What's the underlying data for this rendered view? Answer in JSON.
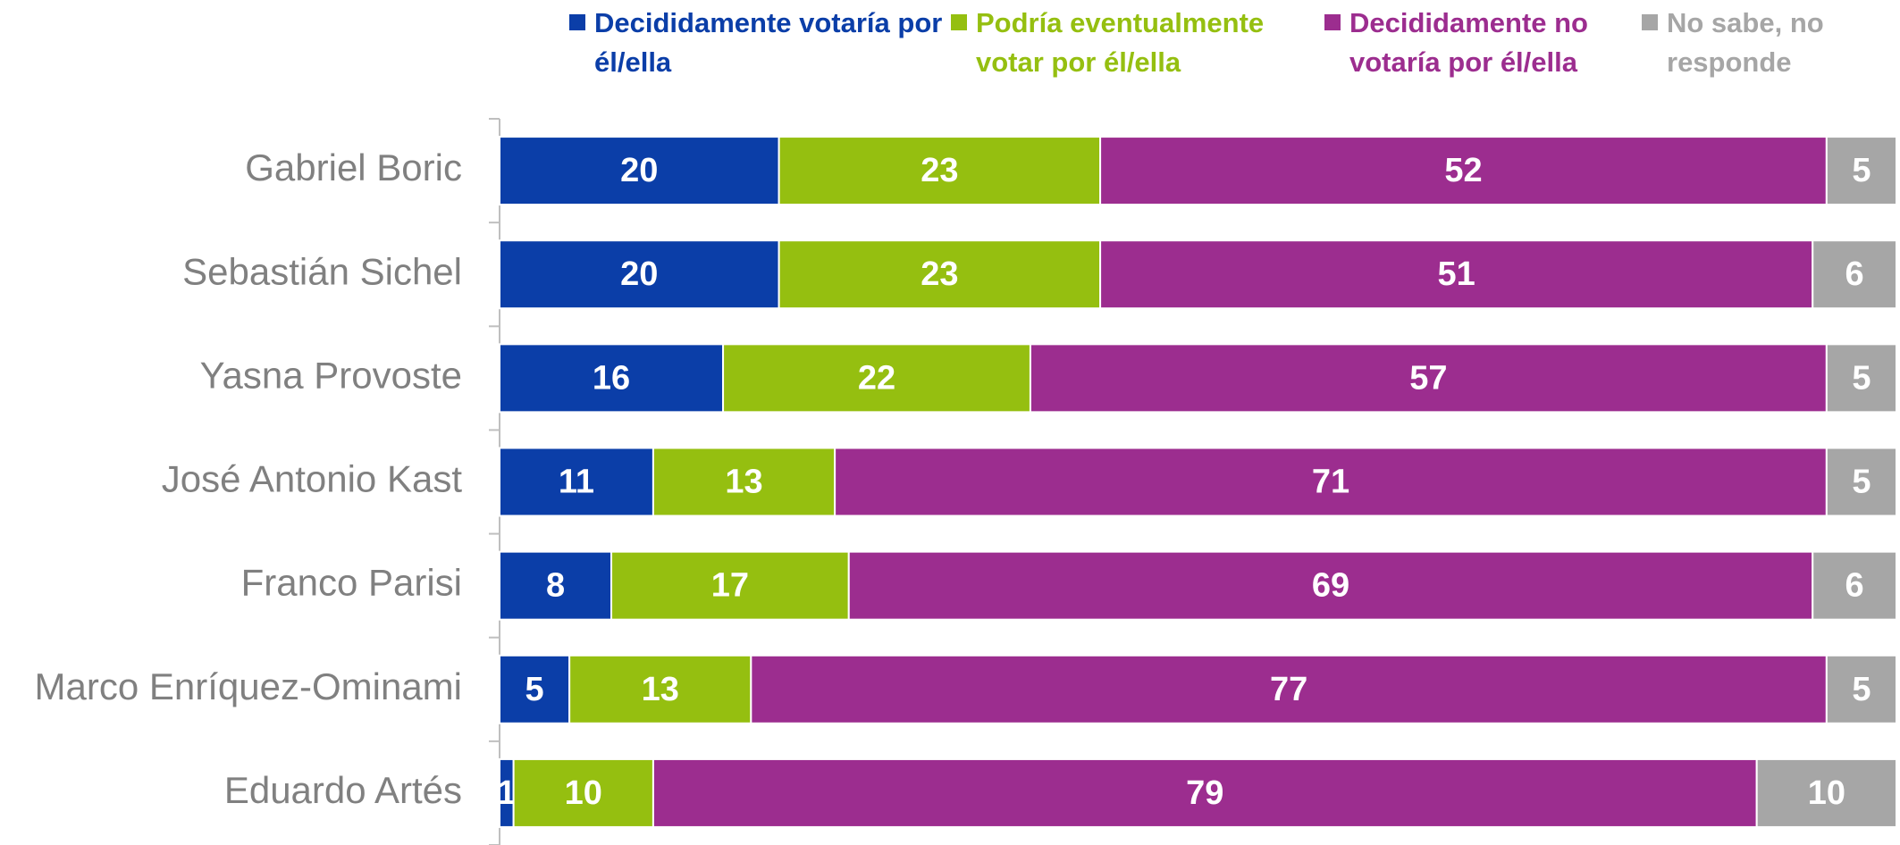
{
  "chart_data": {
    "type": "stacked-bar-horizontal",
    "categories": [
      "Gabriel Boric",
      "Sebastián Sichel",
      "Yasna Provoste",
      "José Antonio Kast",
      "Franco Parisi",
      "Marco Enríquez-Ominami",
      "Eduardo Artés"
    ],
    "series": [
      {
        "name": "Decididamente votaría por él/ella",
        "color": "#0b3ea8",
        "values": [
          20,
          20,
          16,
          11,
          8,
          5,
          1
        ]
      },
      {
        "name": "Podría eventualmente votar por él/ella",
        "color": "#95bf10",
        "values": [
          23,
          23,
          22,
          13,
          17,
          13,
          10
        ]
      },
      {
        "name": "Decididamente no votaría por él/ella",
        "color": "#9c2d8f",
        "values": [
          52,
          51,
          57,
          71,
          69,
          77,
          79
        ]
      },
      {
        "name": "No sabe, no responde",
        "color": "#a6a6a6",
        "values": [
          5,
          6,
          5,
          5,
          6,
          5,
          10
        ]
      }
    ],
    "xlim": [
      0,
      100
    ],
    "legend": "top"
  }
}
